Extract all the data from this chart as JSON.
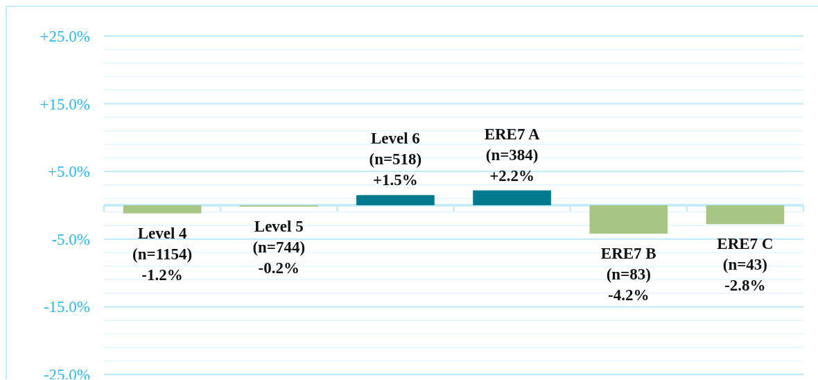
{
  "chart_data": {
    "type": "bar",
    "categories": [
      "Level 4",
      "Level 5",
      "Level 6",
      "ERE7 A",
      "ERE7 B",
      "ERE7 C"
    ],
    "values": [
      -1.2,
      -0.2,
      1.5,
      2.2,
      -4.2,
      -2.8
    ],
    "colors": [
      "#a9c584",
      "#a9c584",
      "#007a8c",
      "#007a8c",
      "#a9c584",
      "#a9c584"
    ],
    "value_labels": [
      "(n=1154)\n-1.2%",
      "(n=744)\n-0.2%",
      "(n=518)\n+1.5%",
      "(n=384)\n+2.2%",
      "(n=83)\n-4.2%",
      "(n=43)\n-2.8%"
    ],
    "ylim": [
      -25,
      25
    ],
    "yticks": [
      {
        "value": -25,
        "label": "-25.0%"
      },
      {
        "value": -23,
        "label": null
      },
      {
        "value": -21,
        "label": null
      },
      {
        "value": -19,
        "label": null
      },
      {
        "value": -17,
        "label": null
      },
      {
        "value": -15,
        "label": "-15.0%"
      },
      {
        "value": -13,
        "label": null
      },
      {
        "value": -11,
        "label": null
      },
      {
        "value": -9,
        "label": null
      },
      {
        "value": -7,
        "label": null
      },
      {
        "value": -5,
        "label": "-5.0%"
      },
      {
        "value": -3,
        "label": null
      },
      {
        "value": -1,
        "label": null
      },
      {
        "value": 1,
        "label": null
      },
      {
        "value": 3,
        "label": null
      },
      {
        "value": 5,
        "label": "+5.0%"
      },
      {
        "value": 7,
        "label": null
      },
      {
        "value": 9,
        "label": null
      },
      {
        "value": 11,
        "label": null
      },
      {
        "value": 13,
        "label": null
      },
      {
        "value": 15,
        "label": "+15.0%"
      },
      {
        "value": 17,
        "label": null
      },
      {
        "value": 19,
        "label": null
      },
      {
        "value": 21,
        "label": null
      },
      {
        "value": 23,
        "label": null
      },
      {
        "value": 25,
        "label": "+25.0%"
      }
    ],
    "grid": "y",
    "ref_lines": [
      {
        "axis": "y",
        "value": 0,
        "label": null,
        "color": "#c7ecfb"
      }
    ]
  }
}
